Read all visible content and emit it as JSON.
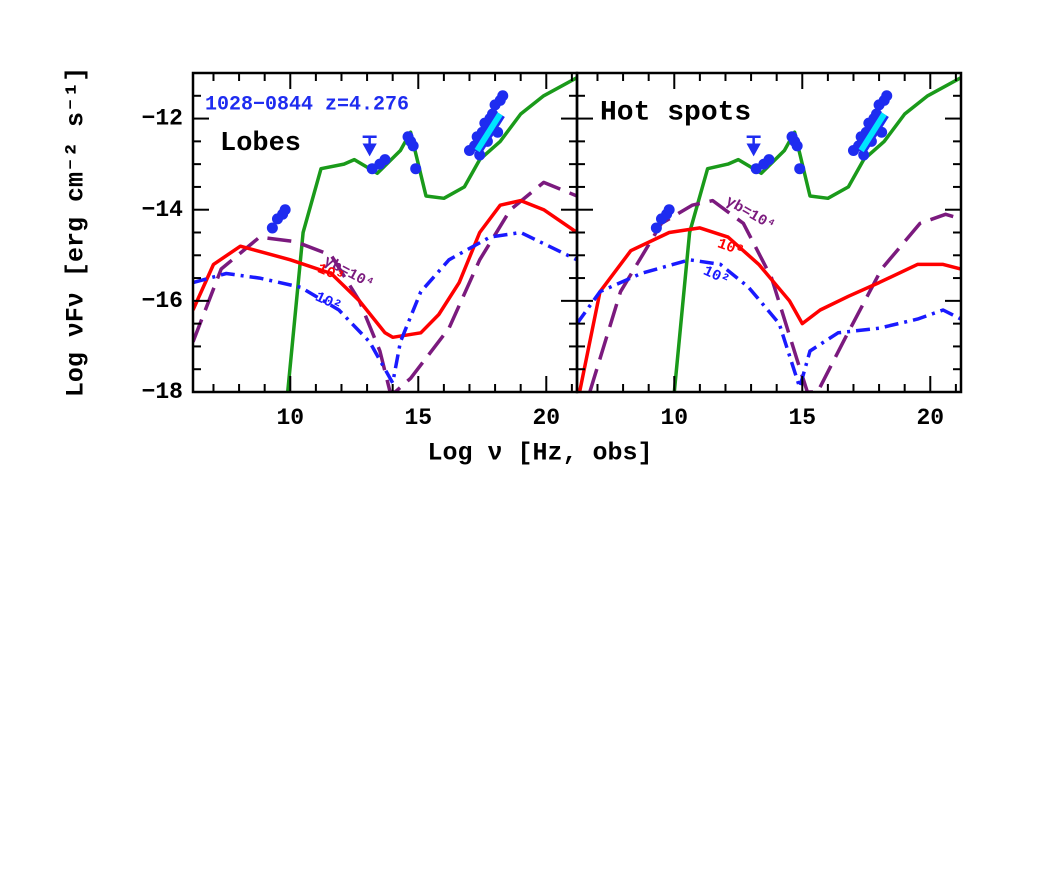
{
  "chart_data": [
    {
      "type": "line",
      "xlabel": "Log ν  [Hz, obs]",
      "ylabel": "Log νFν  [erg cm⁻² s⁻¹]",
      "xlim": [
        6.2,
        21.2
      ],
      "ylim": [
        -18,
        -11
      ],
      "xticks": [
        10,
        15,
        20
      ],
      "yticks": [
        {
          "value": -12,
          "label": "−12"
        },
        {
          "value": -14,
          "label": "−14"
        },
        {
          "value": -16,
          "label": "−16"
        },
        {
          "value": -18,
          "label": "−18"
        }
      ],
      "xminorticks": [
        7,
        8,
        9,
        11,
        12,
        13,
        14,
        16,
        17,
        18,
        19,
        21
      ],
      "yminorticks": [
        -11.5,
        -12.5,
        -13,
        -13.5,
        -14.5,
        -15,
        -15.5,
        -16.5,
        -17,
        -17.5
      ],
      "annotations": [
        {
          "text": "1028−0844 z=4.276",
          "color": "#1e2cf0"
        },
        {
          "text": "Lobes",
          "color": "#000000"
        },
        {
          "text": "γb=10⁴",
          "color": "#7b1a7e"
        },
        {
          "text": "10³",
          "color": "#ff0000"
        },
        {
          "text": "10²",
          "color": "#1a1aff"
        }
      ],
      "series": [
        {
          "style": "solid",
          "color": "#1a9a1a",
          "x": [
            9.9,
            10.5,
            11.2,
            12.1,
            12.5,
            13.4,
            14.3,
            14.7,
            15.3,
            16.0,
            16.8,
            17.4,
            18.2,
            19.0,
            19.9,
            21.2
          ],
          "y": [
            -18,
            -14.5,
            -13.1,
            -13.0,
            -12.9,
            -13.2,
            -12.7,
            -12.3,
            -13.7,
            -13.75,
            -13.5,
            -12.9,
            -12.5,
            -11.9,
            -11.5,
            -11.1
          ]
        },
        {
          "style": "dashed",
          "color": "#7b1a7e",
          "x": [
            6.2,
            7.3,
            8.8,
            10.2,
            11.6,
            12.7,
            13.5,
            13.9,
            14.1,
            14.7,
            16.2,
            17.4,
            18.6,
            19.9,
            21.2
          ],
          "y": [
            -16.9,
            -15.3,
            -14.6,
            -14.7,
            -15.0,
            -16.0,
            -17.1,
            -18,
            -18,
            -17.7,
            -16.6,
            -15.1,
            -14.0,
            -13.4,
            -13.7
          ]
        },
        {
          "style": "solid",
          "color": "#ff0000",
          "x": [
            6.2,
            7.0,
            8.05,
            10.0,
            11.6,
            12.7,
            13.7,
            14.0,
            15.1,
            15.8,
            16.6,
            17.4,
            18.2,
            19.0,
            19.9,
            21.2
          ],
          "y": [
            -16.2,
            -15.2,
            -14.8,
            -15.1,
            -15.4,
            -16.0,
            -16.7,
            -16.8,
            -16.7,
            -16.3,
            -15.6,
            -14.5,
            -13.9,
            -13.8,
            -14.0,
            -14.5
          ]
        },
        {
          "style": "dashdot",
          "color": "#1a1aff",
          "x": [
            6.2,
            7.5,
            8.8,
            10.4,
            11.9,
            13.1,
            13.9,
            14.0,
            14.3,
            15.1,
            16.2,
            17.8,
            19.0,
            21.2
          ],
          "y": [
            -15.6,
            -15.4,
            -15.5,
            -15.7,
            -16.2,
            -16.9,
            -17.7,
            -17.8,
            -16.9,
            -15.8,
            -15.1,
            -14.6,
            -14.5,
            -15.1
          ]
        },
        {
          "style": "points",
          "color": "#1e2cf0",
          "x": [
            9.3,
            9.5,
            9.7,
            9.8,
            13.2,
            13.5,
            13.7,
            14.6,
            14.7,
            14.8,
            14.9,
            17.0,
            17.2,
            17.3,
            17.5,
            17.6,
            17.8,
            17.9,
            18.0,
            18.2,
            18.3,
            17.4,
            17.7,
            18.1
          ],
          "y": [
            -14.4,
            -14.2,
            -14.1,
            -14.0,
            -13.1,
            -13.0,
            -12.9,
            -12.4,
            -12.5,
            -12.6,
            -13.1,
            -12.7,
            -12.6,
            -12.4,
            -12.3,
            -12.1,
            -12.0,
            -11.9,
            -11.7,
            -11.6,
            -11.5,
            -12.8,
            -12.5,
            -12.3
          ]
        },
        {
          "style": "upper_limit",
          "color": "#1e2cf0",
          "x": [
            13.1
          ],
          "y": [
            -12.4
          ]
        },
        {
          "style": "bowtie",
          "color": "#00e5ff",
          "x": [
            17.3,
            18.2
          ],
          "y": [
            -12.7,
            -11.9
          ]
        }
      ]
    },
    {
      "type": "line",
      "xlim": [
        6.2,
        21.2
      ],
      "ylim": [
        -18,
        -11
      ],
      "xticks": [
        10,
        15,
        20
      ],
      "yticks": [
        -12,
        -14,
        -16,
        -18
      ],
      "xminorticks": [
        7,
        8,
        9,
        11,
        12,
        13,
        14,
        16,
        17,
        18,
        19,
        21
      ],
      "yminorticks": [
        -11.5,
        -12.5,
        -13,
        -13.5,
        -14.5,
        -15,
        -15.5,
        -16.5,
        -17,
        -17.5
      ],
      "annotations": [
        {
          "text": "Hot spots",
          "color": "#000000"
        },
        {
          "text": "γb=10⁴",
          "color": "#7b1a7e"
        },
        {
          "text": "10³",
          "color": "#ff0000"
        },
        {
          "text": "10²",
          "color": "#1a1aff"
        }
      ],
      "series": [
        {
          "style": "solid",
          "color": "#1a9a1a",
          "x": [
            10.0,
            10.6,
            11.3,
            12.1,
            12.5,
            13.4,
            14.3,
            14.7,
            15.3,
            16.0,
            16.8,
            17.4,
            18.2,
            19.0,
            19.9,
            21.2
          ],
          "y": [
            -18,
            -14.5,
            -13.1,
            -13.0,
            -12.9,
            -13.2,
            -12.7,
            -12.3,
            -13.7,
            -13.75,
            -13.5,
            -12.9,
            -12.5,
            -11.9,
            -11.5,
            -11.1
          ]
        },
        {
          "style": "dashed",
          "color": "#7b1a7e",
          "x": [
            6.7,
            7.9,
            9.5,
            10.7,
            11.5,
            12.7,
            13.8,
            14.8,
            15.2,
            15.6,
            16.6,
            18.1,
            19.6,
            20.6,
            21.2
          ],
          "y": [
            -18,
            -15.8,
            -14.3,
            -13.9,
            -13.8,
            -14.3,
            -15.5,
            -17.3,
            -18,
            -18,
            -16.9,
            -15.3,
            -14.3,
            -14.1,
            -14.2
          ]
        },
        {
          "style": "solid",
          "color": "#ff0000",
          "x": [
            6.3,
            7.1,
            8.3,
            9.8,
            11.0,
            12.1,
            13.3,
            14.5,
            15.0,
            15.7,
            16.8,
            18.0,
            19.5,
            20.5,
            21.2
          ],
          "y": [
            -18,
            -15.8,
            -14.9,
            -14.5,
            -14.4,
            -14.6,
            -15.2,
            -16.0,
            -16.5,
            -16.2,
            -15.9,
            -15.6,
            -15.2,
            -15.2,
            -15.3
          ]
        },
        {
          "style": "dashdot",
          "color": "#1a1aff",
          "x": [
            6.2,
            7.1,
            8.7,
            10.6,
            11.8,
            12.9,
            14.1,
            14.9,
            15.3,
            16.4,
            18.0,
            19.5,
            20.5,
            21.2
          ],
          "y": [
            -16.5,
            -15.8,
            -15.4,
            -15.1,
            -15.2,
            -15.7,
            -16.5,
            -17.9,
            -17.1,
            -16.7,
            -16.6,
            -16.4,
            -16.2,
            -16.4
          ]
        },
        {
          "style": "points",
          "color": "#1e2cf0",
          "x": [
            9.3,
            9.5,
            9.7,
            9.8,
            13.2,
            13.5,
            13.7,
            14.6,
            14.7,
            14.8,
            14.9,
            17.0,
            17.2,
            17.3,
            17.5,
            17.6,
            17.8,
            17.9,
            18.0,
            18.2,
            18.3,
            17.4,
            17.7,
            18.1
          ],
          "y": [
            -14.4,
            -14.2,
            -14.1,
            -14.0,
            -13.1,
            -13.0,
            -12.9,
            -12.4,
            -12.5,
            -12.6,
            -13.1,
            -12.7,
            -12.6,
            -12.4,
            -12.3,
            -12.1,
            -12.0,
            -11.9,
            -11.7,
            -11.6,
            -11.5,
            -12.8,
            -12.5,
            -12.3
          ]
        },
        {
          "style": "upper_limit",
          "color": "#1e2cf0",
          "x": [
            13.1
          ],
          "y": [
            -12.4
          ]
        },
        {
          "style": "bowtie",
          "color": "#00e5ff",
          "x": [
            17.3,
            18.2
          ],
          "y": [
            -12.7,
            -11.9
          ]
        }
      ]
    }
  ]
}
